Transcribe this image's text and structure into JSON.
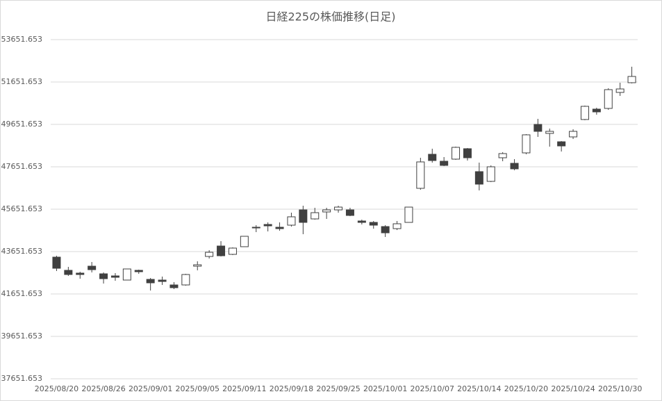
{
  "chart_data": {
    "type": "candlestick",
    "title": "日経225の株価推移(日足)",
    "categories": [
      "2025/08/20",
      null,
      null,
      null,
      "2025/08/26",
      null,
      null,
      null,
      "2025/09/01",
      null,
      null,
      null,
      "2025/09/05",
      null,
      null,
      null,
      "2025/09/11",
      null,
      null,
      null,
      "2025/09/18",
      null,
      null,
      null,
      "2025/09/25",
      null,
      null,
      null,
      "2025/10/01",
      null,
      null,
      null,
      "2025/10/07",
      null,
      null,
      null,
      "2025/10/14",
      null,
      null,
      null,
      "2025/10/20",
      null,
      null,
      null,
      "2025/10/24",
      null,
      null,
      null,
      "2025/10/30",
      null
    ],
    "open": [
      43390,
      42767,
      42636,
      42963,
      42603,
      42504,
      42308,
      42767,
      42340,
      42308,
      42078,
      42078,
      42963,
      43422,
      43914,
      43521,
      43882,
      44800,
      44931,
      44800,
      44898,
      45619,
      45193,
      45521,
      45619,
      45619,
      45095,
      45029,
      44832,
      44734,
      45029,
      46636,
      48242,
      47914,
      48013,
      48505,
      47423,
      46964,
      48078,
      47816,
      48308,
      49652,
      49226,
      48832,
      49062,
      49882,
      50373,
      50406,
      51160,
      51619
    ],
    "high": [
      43455,
      42931,
      42701,
      43160,
      42668,
      42636,
      42832,
      42799,
      42406,
      42472,
      42209,
      42603,
      43193,
      43718,
      44144,
      43849,
      44373,
      44898,
      45029,
      45029,
      45488,
      45816,
      45718,
      45718,
      45816,
      45718,
      45160,
      45095,
      44898,
      45095,
      45750,
      48078,
      48505,
      48111,
      48603,
      48537,
      47849,
      47718,
      48341,
      48013,
      49193,
      49914,
      49455,
      48865,
      49423,
      50538,
      50439,
      51357,
      51619,
      52373
    ],
    "low": [
      42734,
      42504,
      42373,
      42668,
      42144,
      42275,
      42308,
      42603,
      41816,
      42078,
      41881,
      42045,
      42767,
      43324,
      43422,
      43488,
      43882,
      44570,
      44603,
      44636,
      44832,
      44472,
      45160,
      45193,
      45488,
      45324,
      44931,
      44734,
      44341,
      44668,
      45029,
      46570,
      47849,
      47685,
      47980,
      47947,
      46537,
      46931,
      47914,
      47488,
      48242,
      49062,
      48603,
      48373,
      48963,
      49849,
      50111,
      50341,
      50996,
      51586
    ],
    "close": [
      42865,
      42570,
      42570,
      42799,
      42373,
      42439,
      42832,
      42701,
      42177,
      42242,
      41947,
      42570,
      43029,
      43619,
      43455,
      43816,
      44373,
      44767,
      44865,
      44734,
      45292,
      45029,
      45488,
      45619,
      45750,
      45357,
      45029,
      44898,
      44537,
      44964,
      45750,
      47882,
      47947,
      47718,
      48570,
      48078,
      46833,
      47652,
      48275,
      47554,
      49160,
      49324,
      49324,
      48636,
      49324,
      50505,
      50242,
      51292,
      51324,
      51914
    ],
    "up_color": "#ffffff",
    "down_color": "#404040",
    "ylim": [
      37651.653,
      53651.653
    ],
    "yticks": [
      37651.653,
      39651.653,
      41651.653,
      43651.653,
      45651.653,
      47651.653,
      49651.653,
      51651.653,
      53651.653
    ],
    "grid": true
  }
}
